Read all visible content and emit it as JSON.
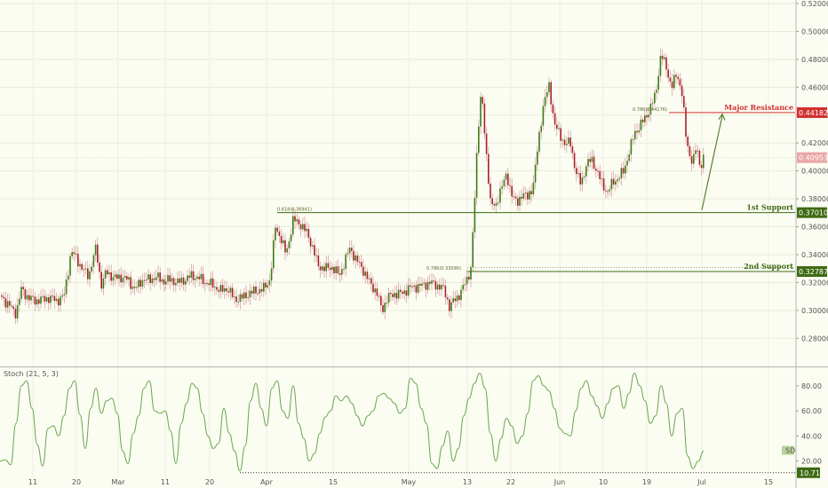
{
  "chart_data": [
    {
      "type": "candlestick",
      "price_axis": {
        "ticks": [
          "0.52000",
          "0.50000",
          "0.48000",
          "0.46000",
          "0.44000",
          "0.42000",
          "0.40000",
          "0.38000",
          "0.36000",
          "0.34000",
          "0.32000",
          "0.30000",
          "0.28000"
        ],
        "ylim": [
          0.27,
          0.52
        ]
      },
      "time_axis": {
        "ticks": [
          "11",
          "20",
          "Mar",
          "11",
          "20",
          "Apr",
          "15",
          "May",
          "13",
          "22",
          "Jun",
          "10",
          "19",
          "Jul",
          "15"
        ]
      },
      "current_price": "0.40953",
      "levels": [
        {
          "name": "Major Resistance",
          "value": 0.44182,
          "tag": "0.44182",
          "color": "#d32f2f",
          "fib": "0.786(0.44176)"
        },
        {
          "name": "1st Support",
          "value": 0.3701,
          "tag": "0.37010",
          "color": "#3e6b15",
          "fib": "0.618(0.36941)"
        },
        {
          "name": "2nd Support",
          "value": 0.32787,
          "tag": "0.32787",
          "color": "#3e6b15",
          "fib": "0.786(0.33090)"
        }
      ],
      "close_path": [
        [
          11,
          0.303
        ],
        [
          18,
          0.298
        ],
        [
          24,
          0.315
        ],
        [
          32,
          0.309
        ],
        [
          40,
          0.307
        ],
        [
          48,
          0.308
        ],
        [
          56,
          0.309
        ],
        [
          64,
          0.307
        ],
        [
          72,
          0.31
        ],
        [
          80,
          0.342
        ],
        [
          86,
          0.338
        ],
        [
          92,
          0.33
        ],
        [
          100,
          0.325
        ],
        [
          108,
          0.345
        ],
        [
          114,
          0.318
        ],
        [
          120,
          0.328
        ],
        [
          128,
          0.323
        ],
        [
          136,
          0.324
        ],
        [
          144,
          0.322
        ],
        [
          152,
          0.315
        ],
        [
          160,
          0.322
        ],
        [
          168,
          0.322
        ],
        [
          176,
          0.324
        ],
        [
          184,
          0.321
        ],
        [
          192,
          0.322
        ],
        [
          200,
          0.32
        ],
        [
          208,
          0.322
        ],
        [
          216,
          0.325
        ],
        [
          224,
          0.323
        ],
        [
          232,
          0.32
        ],
        [
          240,
          0.318
        ],
        [
          248,
          0.314
        ],
        [
          256,
          0.316
        ],
        [
          264,
          0.308
        ],
        [
          272,
          0.309
        ],
        [
          280,
          0.312
        ],
        [
          288,
          0.314
        ],
        [
          296,
          0.315
        ],
        [
          304,
          0.322
        ],
        [
          310,
          0.36
        ],
        [
          316,
          0.352
        ],
        [
          322,
          0.34
        ],
        [
          330,
          0.365
        ],
        [
          338,
          0.362
        ],
        [
          346,
          0.355
        ],
        [
          352,
          0.345
        ],
        [
          358,
          0.332
        ],
        [
          366,
          0.33
        ],
        [
          374,
          0.331
        ],
        [
          382,
          0.325
        ],
        [
          388,
          0.335
        ],
        [
          394,
          0.345
        ],
        [
          400,
          0.337
        ],
        [
          408,
          0.33
        ],
        [
          416,
          0.32
        ],
        [
          424,
          0.313
        ],
        [
          430,
          0.3
        ],
        [
          436,
          0.309
        ],
        [
          444,
          0.312
        ],
        [
          452,
          0.312
        ],
        [
          460,
          0.316
        ],
        [
          468,
          0.317
        ],
        [
          476,
          0.318
        ],
        [
          484,
          0.32
        ],
        [
          492,
          0.318
        ],
        [
          500,
          0.315
        ],
        [
          506,
          0.302
        ],
        [
          512,
          0.308
        ],
        [
          518,
          0.312
        ],
        [
          524,
          0.32
        ],
        [
          530,
          0.33
        ],
        [
          534,
          0.375
        ],
        [
          538,
          0.43
        ],
        [
          542,
          0.46
        ],
        [
          546,
          0.42
        ],
        [
          552,
          0.38
        ],
        [
          558,
          0.372
        ],
        [
          564,
          0.39
        ],
        [
          570,
          0.395
        ],
        [
          576,
          0.385
        ],
        [
          582,
          0.375
        ],
        [
          588,
          0.385
        ],
        [
          594,
          0.38
        ],
        [
          600,
          0.39
        ],
        [
          606,
          0.42
        ],
        [
          612,
          0.45
        ],
        [
          618,
          0.46
        ],
        [
          624,
          0.435
        ],
        [
          630,
          0.425
        ],
        [
          636,
          0.42
        ],
        [
          642,
          0.42
        ],
        [
          648,
          0.4
        ],
        [
          654,
          0.39
        ],
        [
          660,
          0.405
        ],
        [
          666,
          0.408
        ],
        [
          672,
          0.4
        ],
        [
          678,
          0.39
        ],
        [
          684,
          0.385
        ],
        [
          690,
          0.392
        ],
        [
          696,
          0.395
        ],
        [
          702,
          0.4
        ],
        [
          708,
          0.413
        ],
        [
          714,
          0.427
        ],
        [
          720,
          0.432
        ],
        [
          726,
          0.438
        ],
        [
          732,
          0.445
        ],
        [
          738,
          0.455
        ],
        [
          744,
          0.484
        ],
        [
          750,
          0.474
        ],
        [
          756,
          0.46
        ],
        [
          762,
          0.47
        ],
        [
          768,
          0.455
        ],
        [
          772,
          0.425
        ],
        [
          776,
          0.412
        ],
        [
          780,
          0.406
        ],
        [
          784,
          0.418
        ],
        [
          788,
          0.403
        ],
        [
          792,
          0.409
        ]
      ]
    },
    {
      "type": "line",
      "title": "Stoch (21, 5, 3)",
      "y_axis": {
        "ticks": [
          "80.00",
          "60.00",
          "40.00",
          "20.00"
        ],
        "ylim": [
          7,
          94
        ]
      },
      "current_value": "10.71",
      "series_value_tag": "D",
      "level_line": 10.71,
      "series": [
        {
          "color": "#6aa84f",
          "points": [
            [
              0,
              20
            ],
            [
              6,
              21
            ],
            [
              12,
              17
            ],
            [
              18,
              50
            ],
            [
              24,
              80
            ],
            [
              30,
              84
            ],
            [
              36,
              62
            ],
            [
              42,
              33
            ],
            [
              48,
              16
            ],
            [
              54,
              46
            ],
            [
              60,
              48
            ],
            [
              66,
              40
            ],
            [
              72,
              56
            ],
            [
              78,
              78
            ],
            [
              84,
              84
            ],
            [
              90,
              57
            ],
            [
              96,
              30
            ],
            [
              102,
              62
            ],
            [
              108,
              78
            ],
            [
              114,
              58
            ],
            [
              120,
              68
            ],
            [
              126,
              70
            ],
            [
              132,
              58
            ],
            [
              138,
              28
            ],
            [
              144,
              18
            ],
            [
              150,
              42
            ],
            [
              156,
              56
            ],
            [
              162,
              78
            ],
            [
              168,
              84
            ],
            [
              174,
              60
            ],
            [
              180,
              58
            ],
            [
              186,
              60
            ],
            [
              192,
              44
            ],
            [
              198,
              18
            ],
            [
              204,
              50
            ],
            [
              210,
              66
            ],
            [
              216,
              82
            ],
            [
              222,
              78
            ],
            [
              228,
              58
            ],
            [
              234,
              40
            ],
            [
              240,
              30
            ],
            [
              246,
              34
            ],
            [
              252,
              62
            ],
            [
              258,
              42
            ],
            [
              264,
              28
            ],
            [
              270,
              12
            ],
            [
              276,
              32
            ],
            [
              282,
              68
            ],
            [
              288,
              82
            ],
            [
              294,
              62
            ],
            [
              300,
              48
            ],
            [
              306,
              78
            ],
            [
              312,
              84
            ],
            [
              318,
              60
            ],
            [
              324,
              54
            ],
            [
              330,
              80
            ],
            [
              336,
              50
            ],
            [
              342,
              38
            ],
            [
              348,
              20
            ],
            [
              354,
              26
            ],
            [
              360,
              42
            ],
            [
              366,
              55
            ],
            [
              372,
              60
            ],
            [
              378,
              72
            ],
            [
              384,
              68
            ],
            [
              390,
              72
            ],
            [
              396,
              66
            ],
            [
              402,
              56
            ],
            [
              408,
              48
            ],
            [
              414,
              56
            ],
            [
              420,
              60
            ],
            [
              426,
              72
            ],
            [
              432,
              74
            ],
            [
              438,
              70
            ],
            [
              444,
              66
            ],
            [
              450,
              58
            ],
            [
              456,
              62
            ],
            [
              462,
              86
            ],
            [
              468,
              82
            ],
            [
              474,
              62
            ],
            [
              480,
              50
            ],
            [
              486,
              18
            ],
            [
              492,
              14
            ],
            [
              498,
              32
            ],
            [
              504,
              44
            ],
            [
              510,
              20
            ],
            [
              516,
              30
            ],
            [
              522,
              56
            ],
            [
              528,
              70
            ],
            [
              534,
              82
            ],
            [
              540,
              90
            ],
            [
              546,
              78
            ],
            [
              552,
              42
            ],
            [
              558,
              20
            ],
            [
              564,
              38
            ],
            [
              570,
              54
            ],
            [
              576,
              48
            ],
            [
              582,
              34
            ],
            [
              588,
              40
            ],
            [
              594,
              58
            ],
            [
              600,
              84
            ],
            [
              606,
              88
            ],
            [
              612,
              80
            ],
            [
              618,
              76
            ],
            [
              624,
              62
            ],
            [
              630,
              46
            ],
            [
              636,
              42
            ],
            [
              642,
              40
            ],
            [
              648,
              60
            ],
            [
              654,
              78
            ],
            [
              660,
              84
            ],
            [
              666,
              72
            ],
            [
              672,
              64
            ],
            [
              678,
              54
            ],
            [
              684,
              66
            ],
            [
              690,
              78
            ],
            [
              696,
              80
            ],
            [
              702,
              62
            ],
            [
              708,
              74
            ],
            [
              714,
              90
            ],
            [
              720,
              80
            ],
            [
              726,
              68
            ],
            [
              732,
              50
            ],
            [
              738,
              56
            ],
            [
              744,
              80
            ],
            [
              750,
              66
            ],
            [
              756,
              40
            ],
            [
              762,
              58
            ],
            [
              768,
              62
            ],
            [
              774,
              24
            ],
            [
              780,
              14
            ],
            [
              786,
              20
            ],
            [
              792,
              28
            ]
          ]
        }
      ]
    }
  ]
}
